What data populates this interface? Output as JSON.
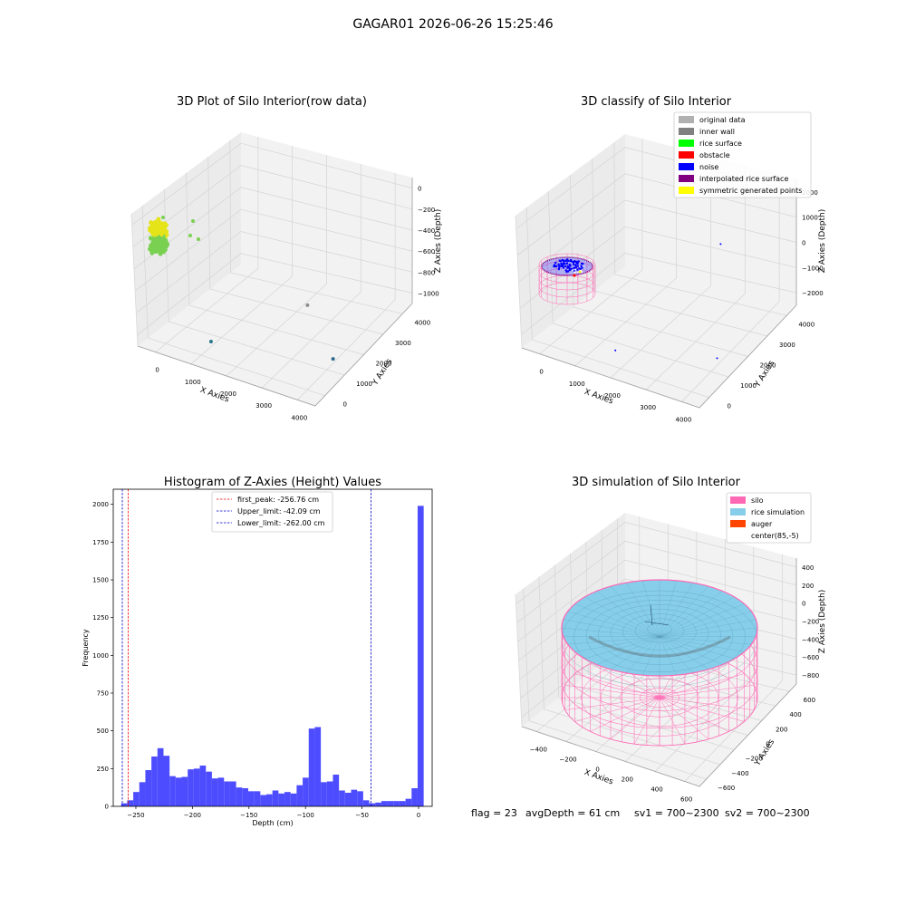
{
  "suptitle": "GAGAR01 2026-06-26 15:25:46",
  "colors": {
    "pane": "#f2f2f2",
    "pane_side": "#ebebeb",
    "pane_edge": "#d9d9d9",
    "grid": "#d4d4d4",
    "axis_line": "#9a9a9a",
    "hist_bar": "#4d4dff",
    "first_peak_line": "#ff0000",
    "limit_line": "#0000cc",
    "silo_mesh": "#ff69b4",
    "rice_fill": "#87ceeb",
    "rice_mesh": "#4a8fa8"
  },
  "chart_data": [
    {
      "id": "raw3d",
      "type": "scatter",
      "title": "3D Plot of Silo Interior(row data)",
      "xlabel": "X Axies",
      "ylabel": "Y Axies",
      "zlabel": "Z Axies (Depth)",
      "xticks": [
        "0",
        "1000",
        "2000",
        "3000",
        "4000"
      ],
      "yticks": [
        "0",
        "1000",
        "2000",
        "3000",
        "4000"
      ],
      "zticks": [
        "0",
        "−200",
        "−400",
        "−600",
        "−800",
        "−1000"
      ],
      "xlim": [
        -300,
        4100
      ],
      "ylim": [
        -300,
        4100
      ],
      "zlim": [
        -1150,
        50
      ],
      "cluster": {
        "color_top": "#e5e419",
        "color_bottom": "#7ad151",
        "x": 100,
        "y": 100,
        "z": [
          -300,
          -50
        ],
        "r_xy": 200
      },
      "outliers": [
        {
          "x": 2000,
          "y": 3000,
          "z": -1050,
          "color": "#8f8f8f"
        },
        {
          "x": 1000,
          "y": 600,
          "z": -1100,
          "color": "#2a788e"
        },
        {
          "x": 3500,
          "y": 1500,
          "z": -1100,
          "color": "#31688e"
        }
      ]
    },
    {
      "id": "classify3d",
      "type": "scatter",
      "title": "3D classify of Silo Interior",
      "xlabel": "X Axies",
      "ylabel": "Y Axies",
      "zlabel": "Z Axies (Depth)",
      "xticks": [
        "0",
        "1000",
        "2000",
        "3000",
        "4000"
      ],
      "yticks": [
        "0",
        "1000",
        "2000",
        "3000",
        "4000"
      ],
      "zticks": [
        "2000",
        "1000",
        "0",
        "−1000",
        "−2000"
      ],
      "xlim": [
        -300,
        4100
      ],
      "ylim": [
        -300,
        4100
      ],
      "zlim": [
        -2600,
        2400
      ],
      "legend_position": "upper right",
      "legend": [
        {
          "label": "original data",
          "color": "#b0b0b0"
        },
        {
          "label": "inner wall",
          "color": "#808080"
        },
        {
          "label": "rice surface",
          "color": "#00ff00"
        },
        {
          "label": "obstacle",
          "color": "#ff0000"
        },
        {
          "label": "noise",
          "color": "#0000ff"
        },
        {
          "label": "interpolated rice surface",
          "color": "#800080"
        },
        {
          "label": "symmetric generated points",
          "color": "#ffff00"
        }
      ],
      "noise_points": [
        {
          "x": 1500,
          "y": 600,
          "z": -2400
        },
        {
          "x": 3500,
          "y": 1500,
          "z": -2300
        },
        {
          "x": 2500,
          "y": 3500,
          "z": 100
        }
      ]
    },
    {
      "id": "histogram",
      "type": "bar",
      "title": "Histogram of Z-Axies (Height) Values",
      "xlabel": "Depth (cm)",
      "ylabel": "Frequency",
      "xlim": [
        -270,
        12
      ],
      "ylim": [
        0,
        2100
      ],
      "xticks": [
        -250,
        -200,
        -150,
        -100,
        -50,
        0
      ],
      "yticks": [
        0,
        250,
        500,
        750,
        1000,
        1250,
        1500,
        1750,
        2000
      ],
      "bin_start": -263,
      "bin_width": 5.35,
      "values": [
        20,
        40,
        95,
        160,
        240,
        330,
        385,
        335,
        200,
        190,
        195,
        245,
        250,
        270,
        230,
        185,
        190,
        165,
        165,
        125,
        120,
        100,
        100,
        75,
        80,
        105,
        85,
        95,
        85,
        140,
        190,
        515,
        525,
        160,
        165,
        210,
        105,
        90,
        110,
        100,
        40,
        20,
        25,
        35,
        35,
        35,
        35,
        50,
        120,
        1990
      ],
      "lines": [
        {
          "value": -256.76,
          "label": "first_peak: -256.76 cm",
          "color": "#ff0000"
        },
        {
          "value": -42.09,
          "label": "Upper_limit: -42.09 cm",
          "color": "#0000cc"
        },
        {
          "value": -262.0,
          "label": "Lower_limit: -262.00 cm",
          "color": "#0000cc"
        }
      ],
      "legend_position": "upper center"
    },
    {
      "id": "simulation3d",
      "type": "surface",
      "title": "3D simulation of Silo Interior",
      "xlabel": "X Axies",
      "ylabel": "Y Axies",
      "zlabel": "Z Axies (Depth)",
      "xticks": [
        "−400",
        "−200",
        "0",
        "200",
        "400",
        "600"
      ],
      "yticks": [
        "−600",
        "−400",
        "−200",
        "0",
        "200",
        "400",
        "600"
      ],
      "zticks": [
        "400",
        "200",
        "0",
        "−200",
        "−400",
        "−600",
        "−800"
      ],
      "xlim": [
        -650,
        750
      ],
      "ylim": [
        -650,
        750
      ],
      "zlim": [
        -950,
        500
      ],
      "silo": {
        "cx": 85,
        "cy": -5,
        "radius": 640,
        "z_bottom": -820,
        "z_top": 0
      },
      "legend_position": "upper right",
      "legend": [
        {
          "label": "silo",
          "color": "#ff69b4"
        },
        {
          "label": "rice simulation",
          "color": "#87ceeb"
        },
        {
          "label": "auger",
          "color": "#ff4500"
        },
        {
          "label": "center(85,-5)",
          "color": "#ffffff"
        }
      ]
    }
  ],
  "footer": {
    "flag": "flag = 23",
    "avg_depth": "avgDepth = 61 cm",
    "sv1": "sv1 = 700~2300",
    "sv2": "sv2 = 700~2300"
  }
}
